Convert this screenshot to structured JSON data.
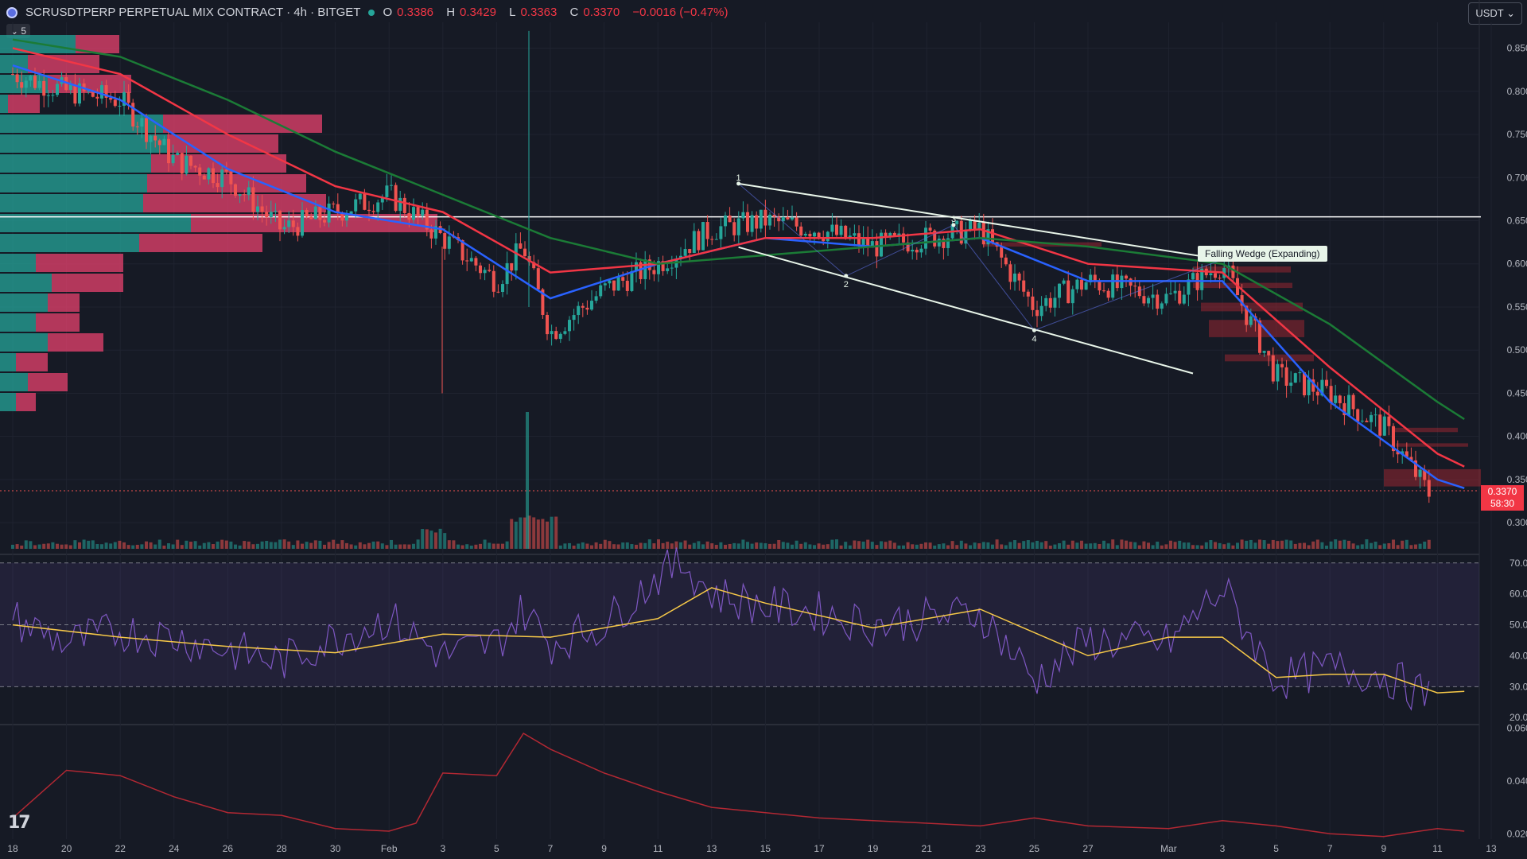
{
  "header": {
    "title": "SCRUSDTPERP PERPETUAL MIX CONTRACT · 4h · BITGET",
    "o_label": "O",
    "o": "0.3386",
    "h_label": "H",
    "h": "0.3429",
    "l_label": "L",
    "l": "0.3363",
    "c_label": "C",
    "c": "0.3370",
    "change": "−0.0016 (−0.47%)"
  },
  "indicator_toggle": "5",
  "currency": "USDT",
  "last_price": {
    "price": "0.3370",
    "countdown": "58:30"
  },
  "colors": {
    "bg": "#161a25",
    "up": "#26a69a",
    "down": "#ef5350",
    "ma_blue": "#2962ff",
    "ma_red": "#f23645",
    "ma_green": "#1b7b36",
    "rsi": "#7e57c2",
    "rsi_ma": "#f7c948",
    "atr": "#b22833"
  },
  "chart_data": [
    {
      "type": "line",
      "title": "SCRUSDTPERP · 4h",
      "y_ticks": [
        "0.8500",
        "0.8000",
        "0.7500",
        "0.7000",
        "0.6500",
        "0.6000",
        "0.5500",
        "0.5000",
        "0.4500",
        "0.4000",
        "0.3500",
        "0.3000"
      ],
      "x_ticks": [
        "18",
        "20",
        "22",
        "24",
        "26",
        "28",
        "30",
        "Feb",
        "3",
        "5",
        "7",
        "9",
        "11",
        "13",
        "15",
        "17",
        "19",
        "21",
        "23",
        "25",
        "27",
        "Mar",
        "3",
        "5",
        "7",
        "9",
        "11",
        "13"
      ],
      "ylim": [
        0.29,
        0.88
      ],
      "series": [
        {
          "name": "Close",
          "x": [
            "Jan 18",
            "Jan 20",
            "Jan 22",
            "Jan 24",
            "Jan 26",
            "Jan 28",
            "Jan 30",
            "Feb 1",
            "Feb 3",
            "Feb 5",
            "Feb 6",
            "Feb 7",
            "Feb 9",
            "Feb 11",
            "Feb 13",
            "Feb 15",
            "Feb 17",
            "Feb 19",
            "Feb 21",
            "Feb 23",
            "Feb 25",
            "Feb 27",
            "Mar 1",
            "Mar 3",
            "Mar 5",
            "Mar 7",
            "Mar 9",
            "Mar 11",
            "Mar 12"
          ],
          "values": [
            0.82,
            0.8,
            0.79,
            0.72,
            0.7,
            0.64,
            0.66,
            0.68,
            0.63,
            0.58,
            0.62,
            0.52,
            0.57,
            0.6,
            0.64,
            0.65,
            0.64,
            0.62,
            0.63,
            0.64,
            0.55,
            0.58,
            0.56,
            0.6,
            0.47,
            0.45,
            0.41,
            0.32,
            0.337
          ]
        },
        {
          "x": [
            "Jan 18",
            "Jan 22",
            "Jan 26",
            "Jan 30",
            "Feb 3",
            "Feb 7",
            "Feb 11",
            "Feb 15",
            "Feb 19",
            "Feb 23",
            "Feb 27",
            "Mar 3",
            "Mar 7",
            "Mar 11",
            "Mar 12"
          ],
          "values": [
            0.83,
            0.79,
            0.71,
            0.66,
            0.64,
            0.56,
            0.6,
            0.63,
            0.62,
            0.63,
            0.58,
            0.58,
            0.44,
            0.35,
            0.34
          ]
        },
        {
          "x": [
            "Jan 18",
            "Jan 22",
            "Jan 26",
            "Jan 30",
            "Feb 3",
            "Feb 7",
            "Feb 11",
            "Feb 15",
            "Feb 19",
            "Feb 23",
            "Feb 27",
            "Mar 3",
            "Mar 7",
            "Mar 11",
            "Mar 12"
          ],
          "values": [
            0.85,
            0.82,
            0.75,
            0.69,
            0.66,
            0.59,
            0.6,
            0.63,
            0.63,
            0.64,
            0.6,
            0.59,
            0.48,
            0.38,
            0.365
          ]
        },
        {
          "x": [
            "Jan 18",
            "Jan 22",
            "Jan 26",
            "Jan 30",
            "Feb 3",
            "Feb 7",
            "Feb 11",
            "Feb 15",
            "Feb 19",
            "Feb 23",
            "Feb 27",
            "Mar 3",
            "Mar 7",
            "Mar 11",
            "Mar 12"
          ],
          "values": [
            0.86,
            0.84,
            0.79,
            0.73,
            0.68,
            0.63,
            0.6,
            0.61,
            0.62,
            0.63,
            0.62,
            0.6,
            0.53,
            0.44,
            0.42
          ]
        }
      ],
      "horizontal_line": 0.6545,
      "annotations": [
        {
          "text": "Falling Wedge (Expanding)",
          "points": [
            {
              "label": "1",
              "x": "Feb 14",
              "y": 0.693
            },
            {
              "label": "2",
              "x": "Feb 18",
              "y": 0.586
            },
            {
              "label": "3",
              "x": "Feb 22",
              "y": 0.645
            },
            {
              "label": "4",
              "x": "Feb 25",
              "y": 0.523
            },
            {
              "label": "5",
              "x": "Mar 3",
              "y": 0.605
            }
          ]
        }
      ]
    },
    {
      "type": "line",
      "y_ticks": [
        "70.00",
        "60.00",
        "50.00",
        "40.00",
        "30.00",
        "20.00"
      ],
      "ylim": [
        18,
        72
      ],
      "series": [
        {
          "x": [
            "Jan 18",
            "Jan 20",
            "Jan 22",
            "Jan 24",
            "Jan 26",
            "Jan 28",
            "Jan 30",
            "Feb 1",
            "Feb 3",
            "Feb 5",
            "Feb 6",
            "Feb 7",
            "Feb 9",
            "Feb 11",
            "Feb 12",
            "Feb 13",
            "Feb 15",
            "Feb 17",
            "Feb 19",
            "Feb 21",
            "Feb 23",
            "Feb 25",
            "Feb 27",
            "Mar 1",
            "Mar 3",
            "Mar 5",
            "Mar 7",
            "Mar 9",
            "Mar 11",
            "Mar 12"
          ],
          "values": [
            52,
            44,
            48,
            46,
            42,
            38,
            46,
            52,
            40,
            44,
            55,
            44,
            50,
            66,
            70,
            60,
            56,
            54,
            50,
            52,
            54,
            32,
            45,
            44,
            62,
            32,
            36,
            34,
            25,
            33
          ]
        },
        {
          "x": [
            "Jan 18",
            "Jan 22",
            "Jan 26",
            "Jan 30",
            "Feb 3",
            "Feb 7",
            "Feb 11",
            "Feb 13",
            "Feb 15",
            "Feb 19",
            "Feb 23",
            "Feb 27",
            "Mar 1",
            "Mar 3",
            "Mar 5",
            "Mar 7",
            "Mar 9",
            "Mar 11",
            "Mar 12"
          ],
          "values": [
            50,
            46,
            43,
            41,
            47,
            46,
            52,
            62,
            57,
            49,
            55,
            40,
            46,
            46,
            33,
            34,
            34,
            28,
            28.5
          ]
        }
      ]
    },
    {
      "type": "line",
      "y_ticks": [
        "0.0600",
        "0.0400",
        "0.0200"
      ],
      "ylim": [
        0.018,
        0.061
      ],
      "series": [
        {
          "x": [
            "Jan 18",
            "Jan 20",
            "Jan 22",
            "Jan 24",
            "Jan 26",
            "Jan 28",
            "Jan 30",
            "Feb 1",
            "Feb 2",
            "Feb 3",
            "Feb 5",
            "Feb 6",
            "Feb 7",
            "Feb 9",
            "Feb 11",
            "Feb 13",
            "Feb 15",
            "Feb 17",
            "Feb 19",
            "Feb 21",
            "Feb 23",
            "Feb 25",
            "Feb 27",
            "Mar 1",
            "Mar 3",
            "Mar 5",
            "Mar 7",
            "Mar 9",
            "Mar 11",
            "Mar 12"
          ],
          "values": [
            0.026,
            0.044,
            0.042,
            0.034,
            0.028,
            0.027,
            0.022,
            0.021,
            0.024,
            0.043,
            0.042,
            0.058,
            0.052,
            0.043,
            0.036,
            0.03,
            0.028,
            0.026,
            0.025,
            0.024,
            0.023,
            0.026,
            0.023,
            0.022,
            0.025,
            0.023,
            0.02,
            0.019,
            0.022,
            0.021
          ]
        }
      ]
    }
  ]
}
